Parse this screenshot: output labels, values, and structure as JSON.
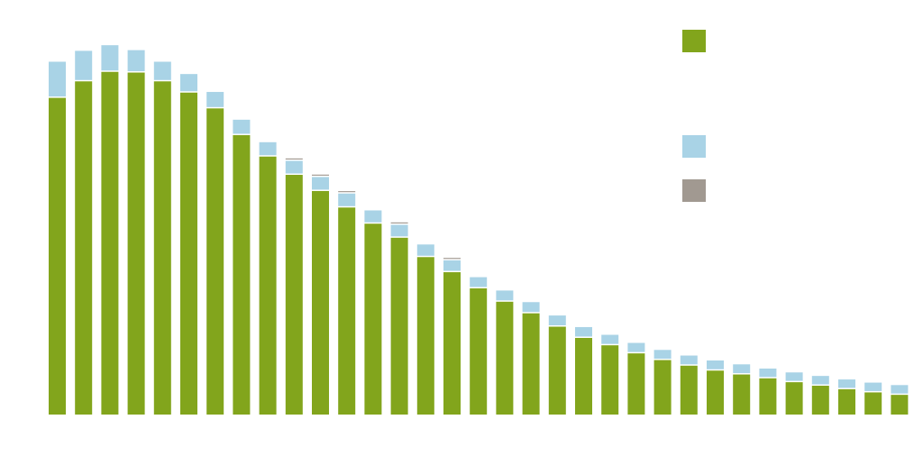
{
  "chart_data": {
    "type": "bar",
    "stacked": true,
    "title": "",
    "xlabel": "",
    "ylabel": "",
    "ylim": [
      0,
      100
    ],
    "grid": false,
    "legend_position": "top-right",
    "categories": [
      "",
      "",
      "",
      "",
      "",
      "",
      "",
      "",
      "",
      "",
      "",
      "",
      "",
      "",
      "",
      "",
      "",
      "",
      "",
      "",
      "",
      "",
      "",
      "",
      "",
      "",
      "",
      "",
      "",
      "",
      "",
      "",
      ""
    ],
    "series": [
      {
        "color": "#82a51c",
        "values": [
          90.1,
          94.8,
          97.5,
          97.3,
          94.8,
          91.6,
          87.1,
          79.5,
          73.4,
          68.2,
          63.6,
          58.9,
          54.3,
          50.3,
          44.8,
          40.5,
          35.9,
          32.1,
          28.8,
          25.0,
          21.8,
          19.7,
          17.4,
          15.5,
          13.9,
          12.5,
          11.4,
          10.3,
          9.2,
          8.2,
          7.2,
          6.3,
          5.6
        ]
      },
      {
        "color": "#a9d3e6",
        "values": [
          9.9,
          8.3,
          7.2,
          6.0,
          5.2,
          4.9,
          4.3,
          4.0,
          3.7,
          3.6,
          3.6,
          3.6,
          3.4,
          3.3,
          3.2,
          3.0,
          2.8,
          2.8,
          2.8,
          2.8,
          2.7,
          2.6,
          2.6,
          2.5,
          2.5,
          2.5,
          2.5,
          2.4,
          2.4,
          2.4,
          2.4,
          2.4,
          2.4
        ]
      },
      {
        "color": "#a19991",
        "values": [
          0,
          0,
          0,
          0,
          0,
          0,
          0,
          0,
          0,
          0.3,
          0.3,
          0.3,
          0,
          0.3,
          0,
          0.3,
          0,
          0,
          0,
          0,
          0,
          0,
          0,
          0,
          0,
          0,
          0,
          0,
          0,
          0,
          0,
          0,
          0
        ]
      }
    ]
  }
}
